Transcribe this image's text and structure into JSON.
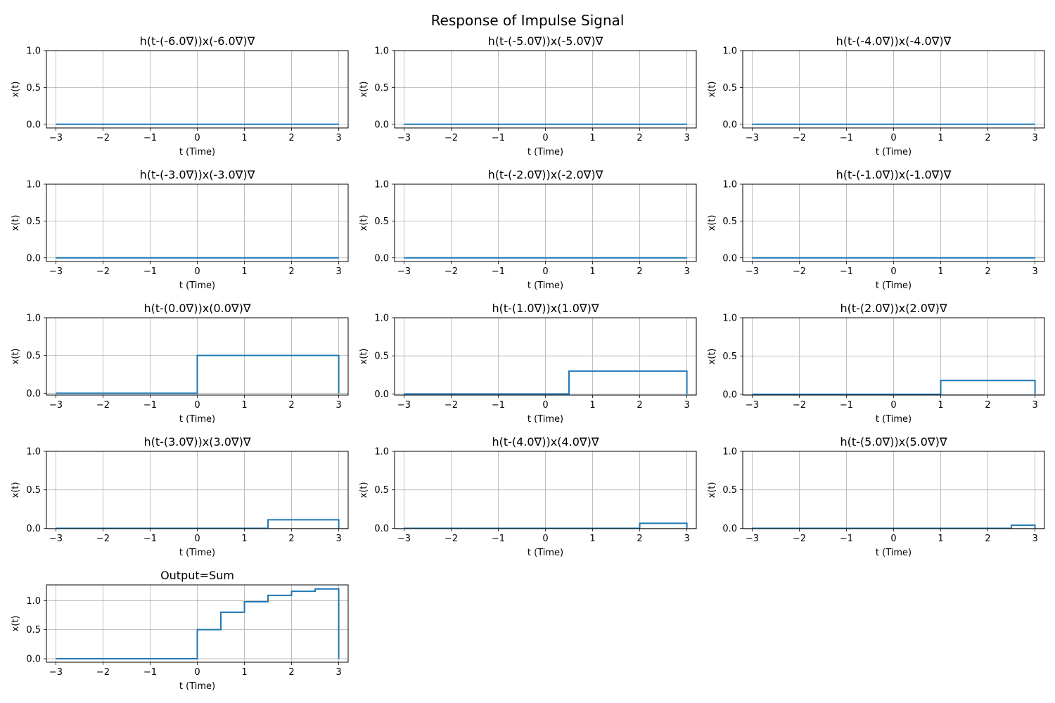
{
  "figure": {
    "title": "Response of Impulse Signal"
  },
  "chart_data": [
    {
      "type": "line",
      "title": "h(t-(-6.0∇))x(-6.0∇)∇",
      "xlabel": "t (Time)",
      "ylabel": "x(t)",
      "xlim": [
        -3.2,
        3.2
      ],
      "ylim": [
        -0.05,
        1.0
      ],
      "xticks": [
        "−3",
        "−2",
        "−1",
        "0",
        "1",
        "2",
        "3"
      ],
      "yticks": [
        "0.0",
        "0.5",
        "1.0"
      ],
      "ytick_values": [
        0,
        0.5,
        1.0
      ],
      "grid": true,
      "x": [
        -3,
        3
      ],
      "y": [
        0,
        0
      ]
    },
    {
      "type": "line",
      "title": "h(t-(-5.0∇))x(-5.0∇)∇",
      "xlabel": "t (Time)",
      "ylabel": "x(t)",
      "xlim": [
        -3.2,
        3.2
      ],
      "ylim": [
        -0.05,
        1.0
      ],
      "xticks": [
        "−3",
        "−2",
        "−1",
        "0",
        "1",
        "2",
        "3"
      ],
      "yticks": [
        "0.0",
        "0.5",
        "1.0"
      ],
      "ytick_values": [
        0,
        0.5,
        1.0
      ],
      "grid": true,
      "x": [
        -3,
        3
      ],
      "y": [
        0,
        0
      ]
    },
    {
      "type": "line",
      "title": "h(t-(-4.0∇))x(-4.0∇)∇",
      "xlabel": "t (Time)",
      "ylabel": "x(t)",
      "xlim": [
        -3.2,
        3.2
      ],
      "ylim": [
        -0.05,
        1.0
      ],
      "xticks": [
        "−3",
        "−2",
        "−1",
        "0",
        "1",
        "2",
        "3"
      ],
      "yticks": [
        "0.0",
        "0.5",
        "1.0"
      ],
      "ytick_values": [
        0,
        0.5,
        1.0
      ],
      "grid": true,
      "x": [
        -3,
        3
      ],
      "y": [
        0,
        0
      ]
    },
    {
      "type": "line",
      "title": "h(t-(-3.0∇))x(-3.0∇)∇",
      "xlabel": "t (Time)",
      "ylabel": "x(t)",
      "xlim": [
        -3.2,
        3.2
      ],
      "ylim": [
        -0.05,
        1.0
      ],
      "xticks": [
        "−3",
        "−2",
        "−1",
        "0",
        "1",
        "2",
        "3"
      ],
      "yticks": [
        "0.0",
        "0.5",
        "1.0"
      ],
      "ytick_values": [
        0,
        0.5,
        1.0
      ],
      "grid": true,
      "x": [
        -3,
        3
      ],
      "y": [
        0,
        0
      ]
    },
    {
      "type": "line",
      "title": "h(t-(-2.0∇))x(-2.0∇)∇",
      "xlabel": "t (Time)",
      "ylabel": "x(t)",
      "xlim": [
        -3.2,
        3.2
      ],
      "ylim": [
        -0.05,
        1.0
      ],
      "xticks": [
        "−3",
        "−2",
        "−1",
        "0",
        "1",
        "2",
        "3"
      ],
      "yticks": [
        "0.0",
        "0.5",
        "1.0"
      ],
      "ytick_values": [
        0,
        0.5,
        1.0
      ],
      "grid": true,
      "x": [
        -3,
        3
      ],
      "y": [
        0,
        0
      ]
    },
    {
      "type": "line",
      "title": "h(t-(-1.0∇))x(-1.0∇)∇",
      "xlabel": "t (Time)",
      "ylabel": "x(t)",
      "xlim": [
        -3.2,
        3.2
      ],
      "ylim": [
        -0.05,
        1.0
      ],
      "xticks": [
        "−3",
        "−2",
        "−1",
        "0",
        "1",
        "2",
        "3"
      ],
      "yticks": [
        "0.0",
        "0.5",
        "1.0"
      ],
      "ytick_values": [
        0,
        0.5,
        1.0
      ],
      "grid": true,
      "x": [
        -3,
        3
      ],
      "y": [
        0,
        0
      ]
    },
    {
      "type": "line",
      "title": "h(t-(0.0∇))x(0.0∇)∇",
      "xlabel": "t (Time)",
      "ylabel": "x(t)",
      "xlim": [
        -3.2,
        3.2
      ],
      "ylim": [
        -0.025,
        1.0
      ],
      "xticks": [
        "−3",
        "−2",
        "−1",
        "0",
        "1",
        "2",
        "3"
      ],
      "yticks": [
        "0.0",
        "0.5",
        "1.0"
      ],
      "ytick_values": [
        0,
        0.5,
        1.0
      ],
      "grid": true,
      "x": [
        -3,
        0,
        0,
        3,
        3
      ],
      "y": [
        0,
        0,
        0.5,
        0.5,
        0
      ]
    },
    {
      "type": "line",
      "title": "h(t-(1.0∇))x(1.0∇)∇",
      "xlabel": "t (Time)",
      "ylabel": "x(t)",
      "xlim": [
        -3.2,
        3.2
      ],
      "ylim": [
        -0.015,
        1.0
      ],
      "xticks": [
        "−3",
        "−2",
        "−1",
        "0",
        "1",
        "2",
        "3"
      ],
      "yticks": [
        "0.0",
        "0.5",
        "1.0"
      ],
      "ytick_values": [
        0,
        0.5,
        1.0
      ],
      "grid": true,
      "x": [
        -3,
        0.5,
        0.5,
        3,
        3
      ],
      "y": [
        0,
        0,
        0.3,
        0.3,
        0
      ]
    },
    {
      "type": "line",
      "title": "h(t-(2.0∇))x(2.0∇)∇",
      "xlabel": "t (Time)",
      "ylabel": "x(t)",
      "xlim": [
        -3.2,
        3.2
      ],
      "ylim": [
        -0.01,
        1.0
      ],
      "xticks": [
        "−3",
        "−2",
        "−1",
        "0",
        "1",
        "2",
        "3"
      ],
      "yticks": [
        "0.0",
        "0.5",
        "1.0"
      ],
      "ytick_values": [
        0,
        0.5,
        1.0
      ],
      "grid": true,
      "x": [
        -3,
        1,
        1,
        3,
        3
      ],
      "y": [
        0,
        0,
        0.18,
        0.18,
        0
      ]
    },
    {
      "type": "line",
      "title": "h(t-(3.0∇))x(3.0∇)∇",
      "xlabel": "t (Time)",
      "ylabel": "x(t)",
      "xlim": [
        -3.2,
        3.2
      ],
      "ylim": [
        -0.005,
        1.0
      ],
      "xticks": [
        "−3",
        "−2",
        "−1",
        "0",
        "1",
        "2",
        "3"
      ],
      "yticks": [
        "0.0",
        "0.5",
        "1.0"
      ],
      "ytick_values": [
        0,
        0.5,
        1.0
      ],
      "grid": true,
      "x": [
        -3,
        1.5,
        1.5,
        3,
        3
      ],
      "y": [
        0,
        0,
        0.11,
        0.11,
        0
      ]
    },
    {
      "type": "line",
      "title": "h(t-(4.0∇))x(4.0∇)∇",
      "xlabel": "t (Time)",
      "ylabel": "x(t)",
      "xlim": [
        -3.2,
        3.2
      ],
      "ylim": [
        -0.005,
        1.0
      ],
      "xticks": [
        "−3",
        "−2",
        "−1",
        "0",
        "1",
        "2",
        "3"
      ],
      "yticks": [
        "0.0",
        "0.5",
        "1.0"
      ],
      "ytick_values": [
        0,
        0.5,
        1.0
      ],
      "grid": true,
      "x": [
        -3,
        2,
        2,
        3,
        3
      ],
      "y": [
        0,
        0,
        0.065,
        0.065,
        0
      ]
    },
    {
      "type": "line",
      "title": "h(t-(5.0∇))x(5.0∇)∇",
      "xlabel": "t (Time)",
      "ylabel": "x(t)",
      "xlim": [
        -3.2,
        3.2
      ],
      "ylim": [
        -0.005,
        1.0
      ],
      "xticks": [
        "−3",
        "−2",
        "−1",
        "0",
        "1",
        "2",
        "3"
      ],
      "yticks": [
        "0.0",
        "0.5",
        "1.0"
      ],
      "ytick_values": [
        0,
        0.5,
        1.0
      ],
      "grid": true,
      "x": [
        -3,
        2.5,
        2.5,
        3,
        3
      ],
      "y": [
        0,
        0,
        0.04,
        0.04,
        0
      ]
    },
    {
      "type": "line",
      "title": "Output=Sum",
      "xlabel": "t (Time)",
      "ylabel": "x(t)",
      "xlim": [
        -3.2,
        3.2
      ],
      "ylim": [
        -0.06,
        1.27
      ],
      "xticks": [
        "−3",
        "−2",
        "−1",
        "0",
        "1",
        "2",
        "3"
      ],
      "yticks": [
        "0.0",
        "0.5",
        "1.0"
      ],
      "ytick_values": [
        0,
        0.5,
        1.0
      ],
      "grid": true,
      "x": [
        -3,
        0,
        0,
        0.5,
        0.5,
        1,
        1,
        1.5,
        1.5,
        2,
        2,
        2.5,
        2.5,
        3,
        3
      ],
      "y": [
        0,
        0,
        0.5,
        0.5,
        0.8,
        0.8,
        0.98,
        0.98,
        1.09,
        1.09,
        1.16,
        1.16,
        1.2,
        1.2,
        0
      ]
    }
  ]
}
